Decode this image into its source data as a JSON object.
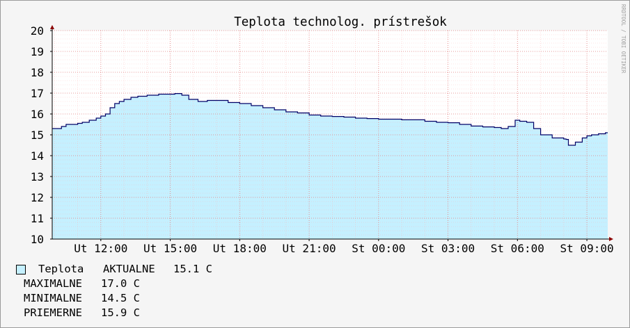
{
  "watermark": "RRDTOOL / TOBI OETIKER",
  "chart_data": {
    "type": "area",
    "title": "Teplota technolog. prístrešok",
    "ylim": [
      10,
      20
    ],
    "y_ticks": [
      "10",
      "11",
      "12",
      "13",
      "14",
      "15",
      "16",
      "17",
      "18",
      "19",
      "20"
    ],
    "x_tick_labels": [
      "Ut 12:00",
      "Ut 15:00",
      "Ut 18:00",
      "Ut 21:00",
      "St 00:00",
      "St 03:00",
      "St 06:00",
      "St 09:00"
    ],
    "x_range_hours": [
      9.9,
      33.9
    ],
    "x_tick_hours": [
      12,
      15,
      18,
      21,
      24,
      27,
      30,
      33
    ],
    "grid": true,
    "series": [
      {
        "name": "Teplota",
        "color": "#c5f0ff",
        "line_color": "#000066",
        "x_hours": [
          9.9,
          10.3,
          10.5,
          10.7,
          11.0,
          11.2,
          11.5,
          11.8,
          12.0,
          12.2,
          12.4,
          12.6,
          12.8,
          13.0,
          13.3,
          13.6,
          14.0,
          14.5,
          14.8,
          15.2,
          15.5,
          15.8,
          16.2,
          16.6,
          17.0,
          17.5,
          18.0,
          18.5,
          19.0,
          19.5,
          20.0,
          20.5,
          21.0,
          21.5,
          22.0,
          22.5,
          23.0,
          23.5,
          24.0,
          25.0,
          26.0,
          26.5,
          27.0,
          27.5,
          28.0,
          28.5,
          29.0,
          29.3,
          29.6,
          29.9,
          30.1,
          30.4,
          30.7,
          31.0,
          31.5,
          32.0,
          32.1,
          32.2,
          32.5,
          32.8,
          33.0,
          33.2,
          33.5,
          33.8,
          33.9
        ],
        "y": [
          15.3,
          15.4,
          15.5,
          15.5,
          15.55,
          15.6,
          15.7,
          15.8,
          15.9,
          16.0,
          16.3,
          16.5,
          16.6,
          16.7,
          16.8,
          16.85,
          16.9,
          16.95,
          16.95,
          16.98,
          16.9,
          16.7,
          16.6,
          16.65,
          16.65,
          16.55,
          16.5,
          16.4,
          16.3,
          16.2,
          16.1,
          16.05,
          15.95,
          15.9,
          15.88,
          15.85,
          15.8,
          15.78,
          15.75,
          15.72,
          15.65,
          15.6,
          15.58,
          15.5,
          15.42,
          15.38,
          15.35,
          15.3,
          15.4,
          15.7,
          15.65,
          15.6,
          15.3,
          15.0,
          14.85,
          14.8,
          14.78,
          14.5,
          14.65,
          14.85,
          14.95,
          15.0,
          15.05,
          15.1,
          15.1
        ]
      }
    ],
    "legend": {
      "series_name": "Teplota",
      "current_label": "AKTUALNE",
      "current_value": "15.1 C",
      "rows": [
        {
          "label": "MAXIMALNE",
          "value": "17.0 C"
        },
        {
          "label": "MINIMALNE",
          "value": "14.5 C"
        },
        {
          "label": "PRIEMERNE",
          "value": "15.9 C"
        }
      ]
    }
  }
}
